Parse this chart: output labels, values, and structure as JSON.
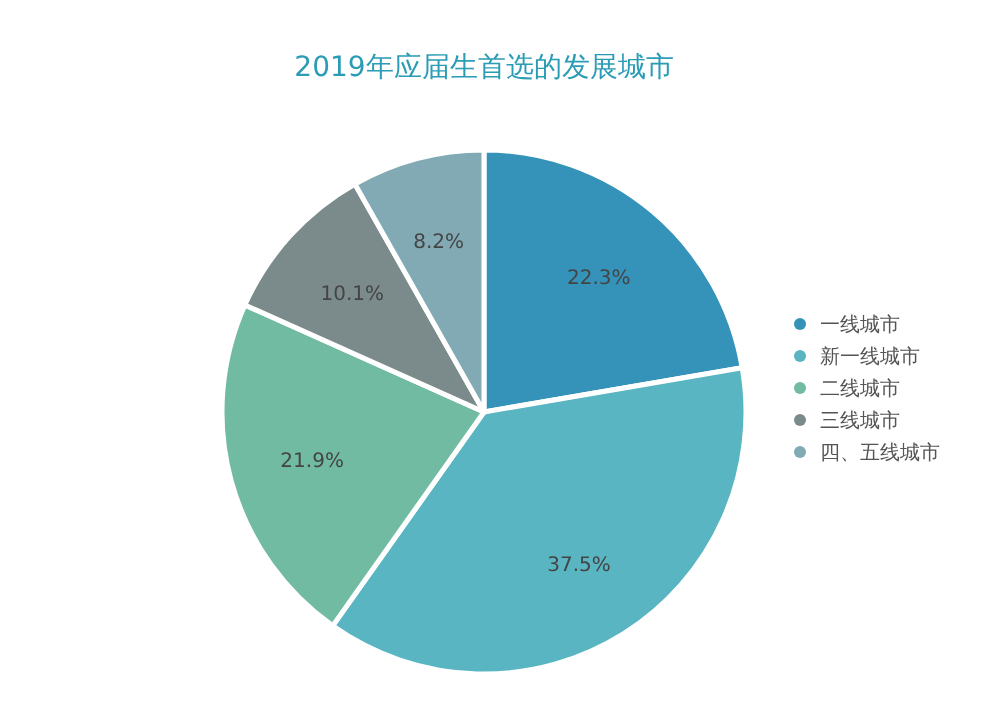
{
  "chart_data": {
    "type": "pie",
    "title": "2019年应届生首选的发展城市",
    "categories": [
      "一线城市",
      "新一线城市",
      "二线城市",
      "三线城市",
      "四、五线城市"
    ],
    "values": [
      22.3,
      37.5,
      21.9,
      10.1,
      8.2
    ],
    "colors": [
      "#3592b8",
      "#58b5c1",
      "#72bba3",
      "#7b8b8c",
      "#82aab5"
    ],
    "value_labels": [
      "22.3%",
      "37.5%",
      "21.9%",
      "10.1%",
      "8.2%"
    ],
    "legend": "right"
  }
}
